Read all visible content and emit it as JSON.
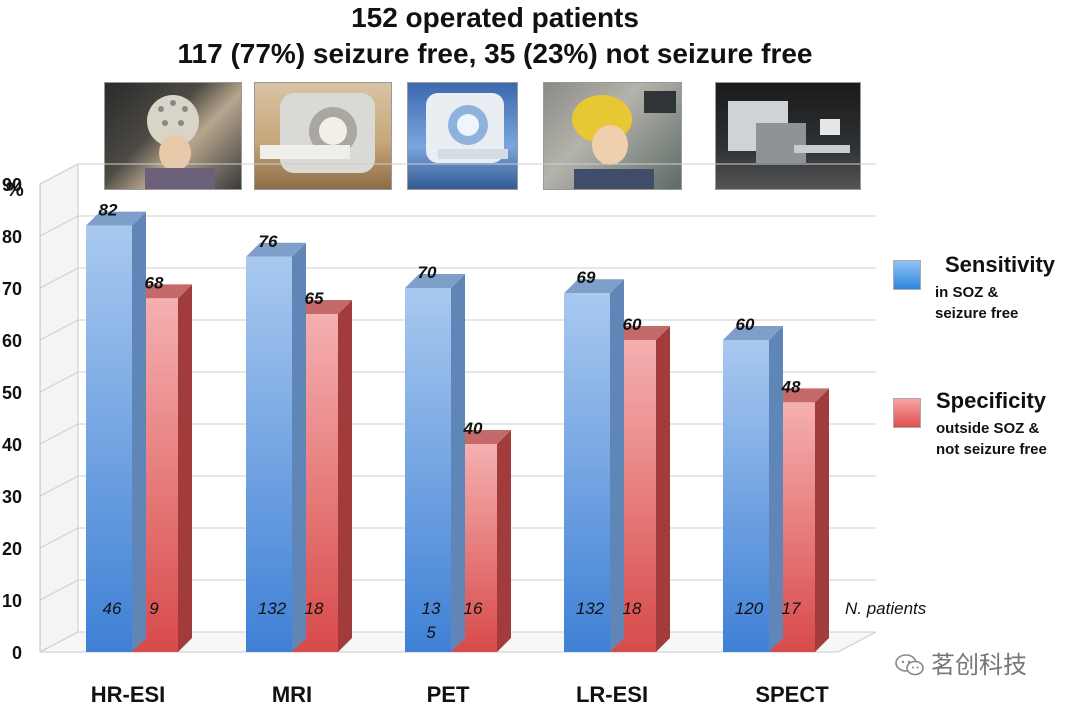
{
  "title": {
    "line1": "152 operated patients",
    "line2": "117 (77%) seizure free, 35 (23%) not seizure free"
  },
  "photos": [
    {
      "name": "hr-esi-eeg-cap-photo"
    },
    {
      "name": "mri-scanner-photo"
    },
    {
      "name": "pet-scanner-photo"
    },
    {
      "name": "lr-esi-eeg-cap-photo"
    },
    {
      "name": "spect-scanner-photo"
    }
  ],
  "legend": [
    {
      "title": "Sensitivity",
      "line1": "in SOZ &",
      "line2": "seizure free",
      "color": "#4a90e2"
    },
    {
      "title": "Specificity",
      "line1": "outside SOZ &",
      "line2": "not seizure free",
      "color": "#e8585a"
    }
  ],
  "watermark": {
    "text": "茗创科技",
    "icon": "wechat-icon"
  },
  "colors": {
    "blue_front_top": "#a9c9ef",
    "blue_front_bottom": "#3f80d6",
    "blue_side": "#5f86b6",
    "blue_top": "#7d9fca",
    "red_front_top": "#f5b0b0",
    "red_front_bottom": "#d84a4a",
    "red_side": "#a23c3c",
    "red_top": "#c56a6a"
  },
  "chart_data": {
    "type": "bar",
    "title": "152 operated patients",
    "ylabel": "%",
    "xlabel": "",
    "ylim": [
      0,
      90
    ],
    "yticks": [
      "0",
      "10",
      "20",
      "30",
      "40",
      "50",
      "60",
      "70",
      "80",
      "90"
    ],
    "categories": [
      "HR-ESI",
      "MRI",
      "PET",
      "LR-ESI",
      "SPECT"
    ],
    "series": [
      {
        "name": "Sensitivity",
        "values": [
          82,
          76,
          70,
          69,
          60
        ],
        "value_labels": [
          "82",
          "76",
          "70",
          "69",
          "60"
        ],
        "n_patients": [
          "46",
          "132",
          "13\n5",
          "132",
          "120"
        ]
      },
      {
        "name": "Specificity",
        "values": [
          68,
          65,
          40,
          60,
          48
        ],
        "value_labels": [
          "68",
          "65",
          "40",
          "60",
          "48"
        ],
        "n_patients": [
          "9",
          "18",
          "16",
          "18",
          "17"
        ]
      }
    ],
    "n_patients_label": "N. patients",
    "grid": true,
    "legend_position": "right"
  }
}
